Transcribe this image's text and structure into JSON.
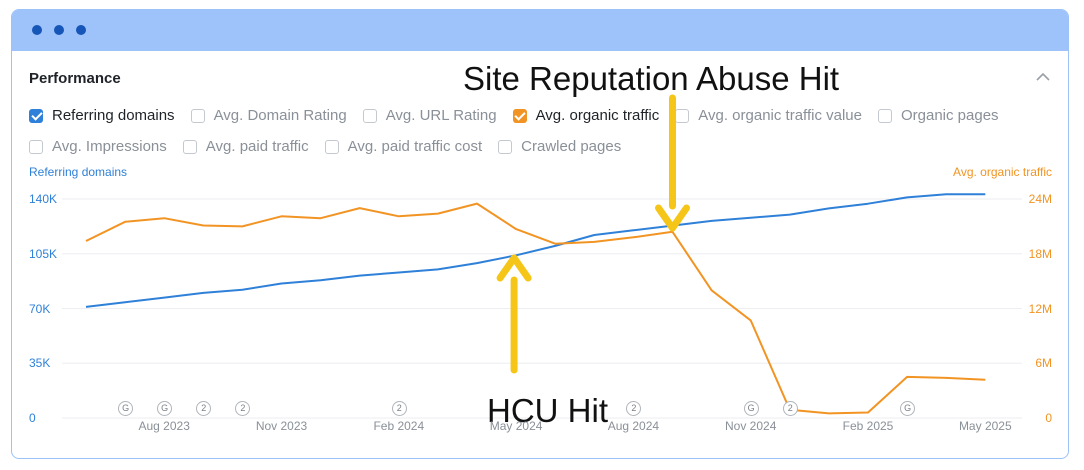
{
  "window": {
    "colors": {
      "titlebar": "#9dc3fa",
      "dots": "#1656b8"
    }
  },
  "panel": {
    "title": "Performance",
    "collapse_icon": "chevron-up-icon",
    "metrics_row1": [
      {
        "label": "Referring domains",
        "checked": true,
        "color": "#2f80d8"
      },
      {
        "label": "Avg. Domain Rating",
        "checked": false
      },
      {
        "label": "Avg. URL Rating",
        "checked": false
      },
      {
        "label": "Avg. organic traffic",
        "checked": true,
        "color": "#f29423"
      },
      {
        "label": "Avg. organic traffic value",
        "checked": false
      },
      {
        "label": "Organic pages",
        "checked": false
      }
    ],
    "metrics_row2": [
      {
        "label": "Avg. Impressions",
        "checked": false
      },
      {
        "label": "Avg. paid traffic",
        "checked": false
      },
      {
        "label": "Avg. paid traffic cost",
        "checked": false
      },
      {
        "label": "Crawled pages",
        "checked": false
      }
    ]
  },
  "chart_data": {
    "type": "line",
    "left_axis": {
      "title": "Referring domains",
      "ticks": [
        "0",
        "35K",
        "70K",
        "105K",
        "140K"
      ],
      "ylim": [
        0,
        140000
      ],
      "color": "#2f80d8"
    },
    "right_axis": {
      "title": "Avg. organic traffic",
      "ticks": [
        "0",
        "6M",
        "12M",
        "18M",
        "24M"
      ],
      "ylim": [
        0,
        24000000
      ],
      "color": "#f29423"
    },
    "x_ticks": [
      "Aug 2023",
      "Nov 2023",
      "Feb 2024",
      "May 2024",
      "Aug 2024",
      "Nov 2024",
      "Feb 2025",
      "May 2025"
    ],
    "x": [
      "Jun 2023",
      "Jul 2023",
      "Aug 2023",
      "Sep 2023",
      "Oct 2023",
      "Nov 2023",
      "Dec 2023",
      "Jan 2024",
      "Feb 2024",
      "Mar 2024",
      "Apr 2024",
      "May 2024",
      "Jun 2024",
      "Jul 2024",
      "Aug 2024",
      "Sep 2024",
      "Oct 2024",
      "Nov 2024",
      "Dec 2024",
      "Jan 2025",
      "Feb 2025",
      "Mar 2025",
      "Apr 2025",
      "May 2025"
    ],
    "series": [
      {
        "name": "Referring domains",
        "axis": "left",
        "color": "#2f80d8",
        "values": [
          71000,
          74000,
          77000,
          80000,
          82000,
          86000,
          88000,
          91000,
          93000,
          95000,
          99000,
          104000,
          110000,
          117000,
          120000,
          123000,
          126000,
          128000,
          130000,
          134000,
          137000,
          141000,
          143000,
          143000
        ]
      },
      {
        "name": "Avg. organic traffic",
        "axis": "right",
        "color": "#f29423",
        "values": [
          19400000,
          21500000,
          21900000,
          21100000,
          21000000,
          22100000,
          21900000,
          23000000,
          22100000,
          22400000,
          23500000,
          20700000,
          19100000,
          19300000,
          19800000,
          20400000,
          14000000,
          10700000,
          900000,
          500000,
          600000,
          4500000,
          4400000,
          4200000
        ]
      }
    ],
    "event_markers": [
      {
        "date": "Jul 2023",
        "label": "G"
      },
      {
        "date": "Aug 2023",
        "label": "G"
      },
      {
        "date": "Sep 2023",
        "label": "2"
      },
      {
        "date": "Oct 2023",
        "label": "2"
      },
      {
        "date": "Feb 2024",
        "label": "2"
      },
      {
        "date": "Aug 2024",
        "label": "2"
      },
      {
        "date": "Nov 2024",
        "label": "G"
      },
      {
        "date": "Dec 2024",
        "label": "2"
      },
      {
        "date": "Mar 2025",
        "label": "G"
      }
    ],
    "annotations": [
      {
        "text": "Site Reputation Abuse Hit",
        "date": "Sep 2024",
        "arrow": "down",
        "color": "#f5c518"
      },
      {
        "text": "HCU Hit",
        "date": "May 2024",
        "arrow": "up",
        "color": "#f5c518"
      }
    ]
  }
}
